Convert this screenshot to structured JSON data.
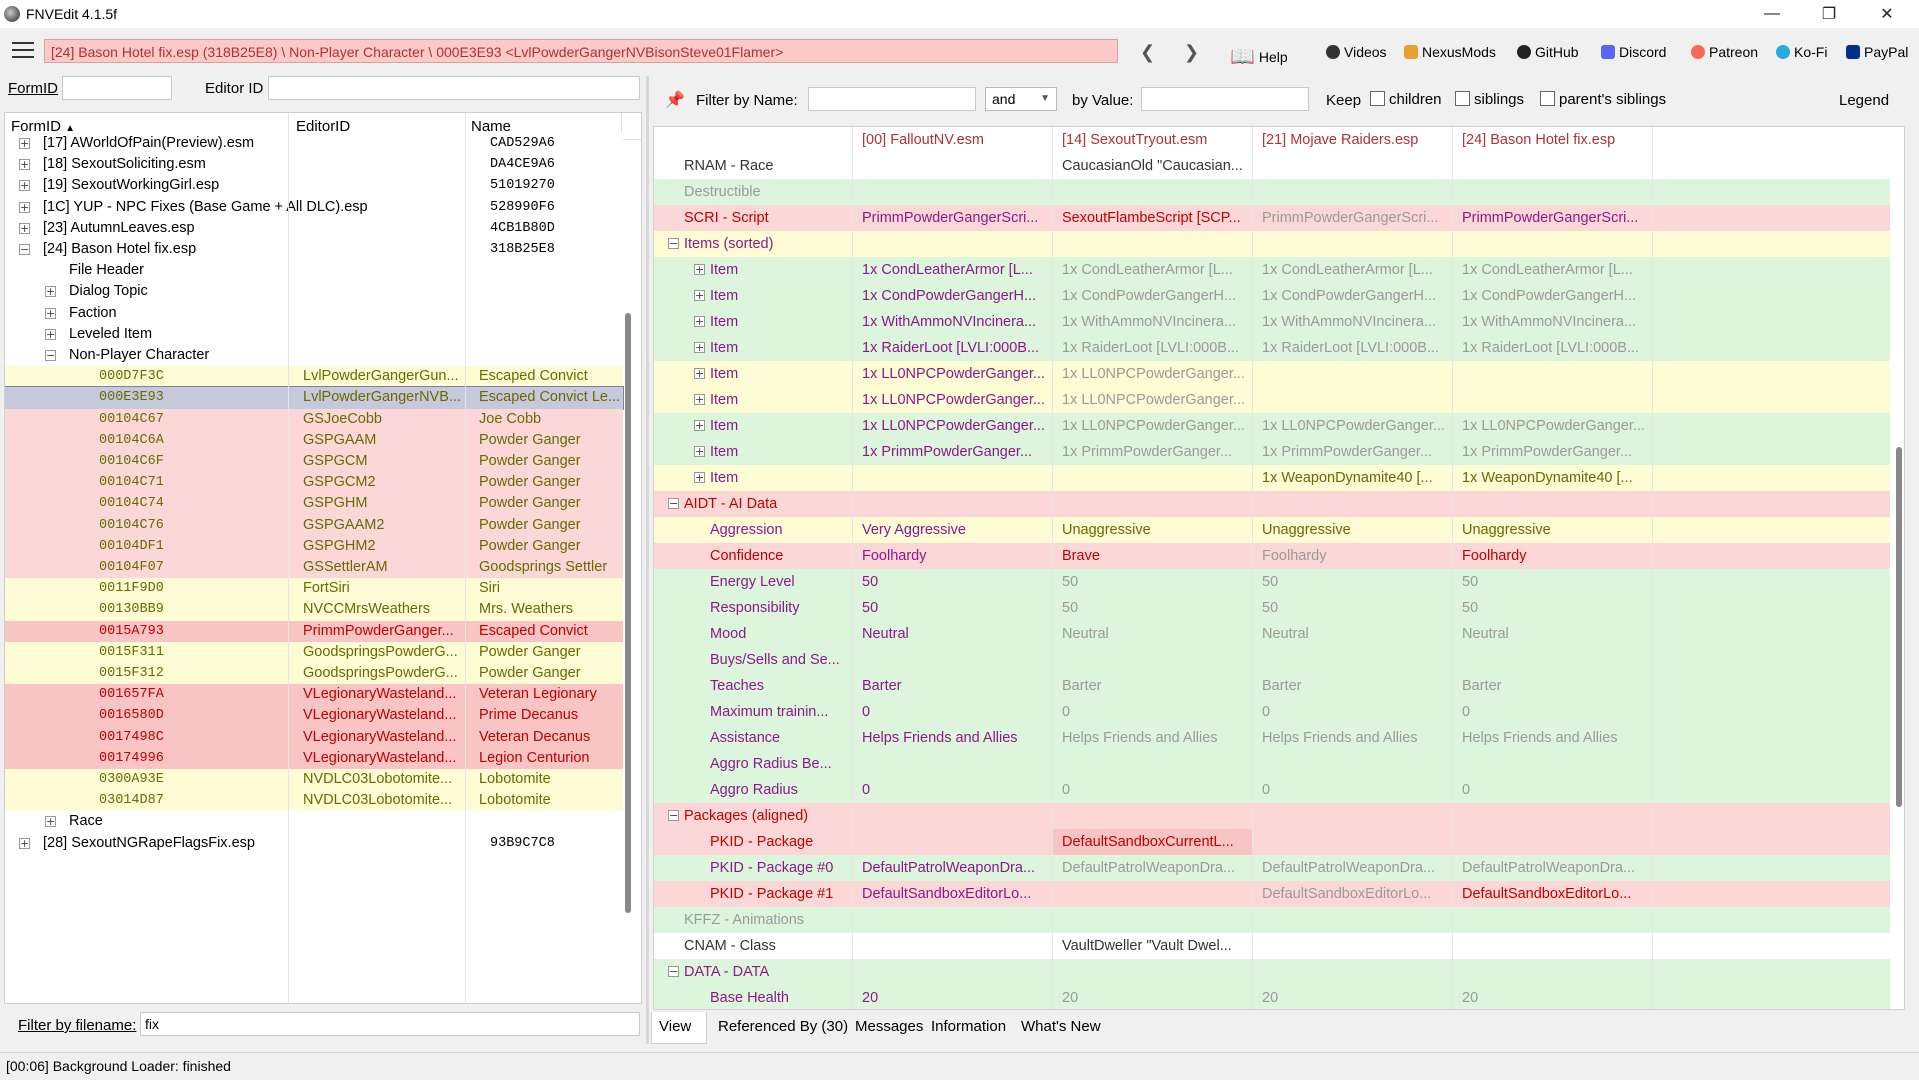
{
  "window": {
    "title": "FNVEdit 4.1.5f"
  },
  "toolbar": {
    "path": "[24] Bason Hotel fix.esp (318B25E8) \\ Non-Player Character \\ 000E3E93 <LvlPowderGangerNVBisonSteve01Flamer>",
    "buttons": [
      "Help",
      "Videos",
      "NexusMods",
      "GitHub",
      "Discord",
      "Patreon",
      "Ko-Fi",
      "PayPal"
    ]
  },
  "left": {
    "formid_label": "FormID",
    "editorid_label": "Editor ID",
    "columns": [
      "FormID",
      "EditorID",
      "Name"
    ],
    "filter_label": "Filter by filename:",
    "filter_value": "fix",
    "tree": [
      {
        "indent": 0,
        "exp": "+",
        "label": "[17] AWorldOfPain(Preview).esm",
        "name": "CAD529A6",
        "bg": "white",
        "cls": ""
      },
      {
        "indent": 0,
        "exp": "+",
        "label": "[18] SexoutSoliciting.esm",
        "name": "DA4CE9A6",
        "bg": "white",
        "cls": ""
      },
      {
        "indent": 0,
        "exp": "+",
        "label": "[19] SexoutWorkingGirl.esp",
        "name": "51019270",
        "bg": "white",
        "cls": ""
      },
      {
        "indent": 0,
        "exp": "+",
        "label": "[1C] YUP - NPC Fixes (Base Game + All DLC).esp",
        "name": "528990F6",
        "bg": "white",
        "cls": ""
      },
      {
        "indent": 0,
        "exp": "+",
        "label": "[23] AutumnLeaves.esp",
        "name": "4CB1B80D",
        "bg": "white",
        "cls": ""
      },
      {
        "indent": 0,
        "exp": "-",
        "label": "[24] Bason Hotel fix.esp",
        "name": "318B25E8",
        "bg": "white",
        "cls": ""
      },
      {
        "indent": 1,
        "exp": "",
        "label": "File Header",
        "name": "",
        "bg": "white",
        "cls": ""
      },
      {
        "indent": 1,
        "exp": "+",
        "label": "Dialog Topic",
        "name": "",
        "bg": "white",
        "cls": ""
      },
      {
        "indent": 1,
        "exp": "+",
        "label": "Faction",
        "name": "",
        "bg": "white",
        "cls": ""
      },
      {
        "indent": 1,
        "exp": "+",
        "label": "Leveled Item",
        "name": "",
        "bg": "white",
        "cls": ""
      },
      {
        "indent": 1,
        "exp": "-",
        "label": "Non-Player Character",
        "name": "",
        "bg": "white",
        "cls": ""
      }
    ],
    "npcs": [
      {
        "formid": "000D7F3C",
        "editorid": "LvlPowderGangerGun...",
        "name": "Escaped Convict",
        "bg": "yellow",
        "cls": "tx-olive"
      },
      {
        "formid": "000E3E93",
        "editorid": "LvlPowderGangerNVB...",
        "name": "Escaped Convict Le...",
        "bg": "selrow",
        "cls": "tx-olive"
      },
      {
        "formid": "00104C67",
        "editorid": "GSJoeCobb",
        "name": "Joe Cobb",
        "bg": "red",
        "cls": "tx-olive"
      },
      {
        "formid": "00104C6A",
        "editorid": "GSPGAAM",
        "name": "Powder Ganger",
        "bg": "red",
        "cls": "tx-olive"
      },
      {
        "formid": "00104C6F",
        "editorid": "GSPGCM",
        "name": "Powder Ganger",
        "bg": "red",
        "cls": "tx-olive"
      },
      {
        "formid": "00104C71",
        "editorid": "GSPGCM2",
        "name": "Powder Ganger",
        "bg": "red",
        "cls": "tx-olive"
      },
      {
        "formid": "00104C74",
        "editorid": "GSPGHM",
        "name": "Powder Ganger",
        "bg": "red",
        "cls": "tx-olive"
      },
      {
        "formid": "00104C76",
        "editorid": "GSPGAAM2",
        "name": "Powder Ganger",
        "bg": "red",
        "cls": "tx-olive"
      },
      {
        "formid": "00104DF1",
        "editorid": "GSPGHM2",
        "name": "Powder Ganger",
        "bg": "red",
        "cls": "tx-olive"
      },
      {
        "formid": "00104F07",
        "editorid": "GSSettlerAM",
        "name": "Goodsprings Settler",
        "bg": "red",
        "cls": "tx-olive"
      },
      {
        "formid": "0011F9D0",
        "editorid": "FortSiri",
        "name": "Siri",
        "bg": "yellow",
        "cls": "tx-olive"
      },
      {
        "formid": "00130BB9",
        "editorid": "NVCCMrsWeathers",
        "name": "Mrs. Weathers",
        "bg": "yellow",
        "cls": "tx-olive"
      },
      {
        "formid": "0015A793",
        "editorid": "PrimmPowderGanger...",
        "name": "Escaped Convict",
        "bg": "redd",
        "cls": "tx-red"
      },
      {
        "formid": "0015F311",
        "editorid": "GoodspringsPowderG...",
        "name": "Powder Ganger",
        "bg": "yellow",
        "cls": "tx-olive"
      },
      {
        "formid": "0015F312",
        "editorid": "GoodspringsPowderG...",
        "name": "Powder Ganger",
        "bg": "yellow",
        "cls": "tx-olive"
      },
      {
        "formid": "001657FA",
        "editorid": "VLegionaryWasteland...",
        "name": "Veteran Legionary",
        "bg": "redd",
        "cls": "tx-red"
      },
      {
        "formid": "0016580D",
        "editorid": "VLegionaryWasteland...",
        "name": "Prime Decanus",
        "bg": "redd",
        "cls": "tx-red"
      },
      {
        "formid": "0017498C",
        "editorid": "VLegionaryWasteland...",
        "name": "Veteran Decanus",
        "bg": "redd",
        "cls": "tx-red"
      },
      {
        "formid": "00174996",
        "editorid": "VLegionaryWasteland...",
        "name": "Legion Centurion",
        "bg": "redd",
        "cls": "tx-red"
      },
      {
        "formid": "0300A93E",
        "editorid": "NVDLC03Lobotomite...",
        "name": "Lobotomite",
        "bg": "yellow",
        "cls": "tx-olive"
      },
      {
        "formid": "03014D87",
        "editorid": "NVDLC03Lobotomite...",
        "name": "Lobotomite",
        "bg": "yellow",
        "cls": "tx-olive"
      }
    ],
    "tail": [
      {
        "indent": 1,
        "exp": "+",
        "label": "Race",
        "name": "",
        "bg": "white",
        "cls": ""
      },
      {
        "indent": 0,
        "exp": "+",
        "label": "[28] SexoutNGRapeFlagsFix.esp",
        "name": "93B9C7C8",
        "bg": "white",
        "cls": ""
      }
    ]
  },
  "filter": {
    "name_label": "Filter by Name:",
    "and_value": "and",
    "value_label": "by Value:",
    "keep_label": "Keep",
    "children_label": "children",
    "siblings_label": "siblings",
    "parents_siblings_label": "parent's siblings",
    "legend_label": "Legend"
  },
  "grid": {
    "columns": [
      "[00] FalloutNV.esm",
      "[14] SexoutTryout.esm",
      "[21] Mojave Raiders.esp",
      "[24] Bason Hotel fix.esp"
    ],
    "rows": [
      {
        "label": "RNAM - Race",
        "lvl": 0,
        "exp": "",
        "bg": "white",
        "cells": [
          "",
          "CaucasianOld \"Caucasian...",
          "",
          ""
        ],
        "cls": [
          "tx-dark",
          "tx-dark",
          "tx-dark",
          "tx-dark"
        ],
        "lcls": "tx-dark"
      },
      {
        "label": "Destructible",
        "lvl": 0,
        "exp": "",
        "bg": "green",
        "cells": [
          "",
          "",
          "",
          ""
        ],
        "cls": [
          "",
          "",
          "",
          ""
        ],
        "lcls": "tx-gray"
      },
      {
        "label": "SCRI - Script",
        "lvl": 0,
        "exp": "",
        "bg": "red",
        "cells": [
          "PrimmPowderGangerScri...",
          "SexoutFlambeScript [SCP...",
          "PrimmPowderGangerScri...",
          "PrimmPowderGangerScri..."
        ],
        "cls": [
          "tx-purple",
          "tx-red",
          "tx-gray",
          "tx-purple"
        ],
        "lcls": "tx-red"
      },
      {
        "label": "Items (sorted)",
        "lvl": 0,
        "exp": "-",
        "bg": "yellow",
        "cells": [
          "",
          "",
          "",
          ""
        ],
        "cls": [
          "",
          "",
          "",
          ""
        ],
        "lcls": "tx-purple"
      },
      {
        "label": "Item",
        "lvl": 1,
        "exp": "+",
        "bg": "green",
        "cells": [
          "1x CondLeatherArmor [L...",
          "1x CondLeatherArmor [L...",
          "1x CondLeatherArmor [L...",
          "1x CondLeatherArmor [L..."
        ],
        "cls": [
          "tx-purple",
          "tx-gray",
          "tx-gray",
          "tx-gray"
        ],
        "lcls": "tx-purple"
      },
      {
        "label": "Item",
        "lvl": 1,
        "exp": "+",
        "bg": "green",
        "cells": [
          "1x CondPowderGangerH...",
          "1x CondPowderGangerH...",
          "1x CondPowderGangerH...",
          "1x CondPowderGangerH..."
        ],
        "cls": [
          "tx-purple",
          "tx-gray",
          "tx-gray",
          "tx-gray"
        ],
        "lcls": "tx-purple"
      },
      {
        "label": "Item",
        "lvl": 1,
        "exp": "+",
        "bg": "green",
        "cells": [
          "1x WithAmmoNVIncinera...",
          "1x WithAmmoNVIncinera...",
          "1x WithAmmoNVIncinera...",
          "1x WithAmmoNVIncinera..."
        ],
        "cls": [
          "tx-purple",
          "tx-gray",
          "tx-gray",
          "tx-gray"
        ],
        "lcls": "tx-purple"
      },
      {
        "label": "Item",
        "lvl": 1,
        "exp": "+",
        "bg": "green",
        "cells": [
          "1x RaiderLoot [LVLI:000B...",
          "1x RaiderLoot [LVLI:000B...",
          "1x RaiderLoot [LVLI:000B...",
          "1x RaiderLoot [LVLI:000B..."
        ],
        "cls": [
          "tx-purple",
          "tx-gray",
          "tx-gray",
          "tx-gray"
        ],
        "lcls": "tx-purple"
      },
      {
        "label": "Item",
        "lvl": 1,
        "exp": "+",
        "bg": "yellow",
        "cells": [
          "1x LL0NPCPowderGanger...",
          "1x LL0NPCPowderGanger...",
          "",
          ""
        ],
        "cls": [
          "tx-purple",
          "tx-gray",
          "",
          ""
        ],
        "lcls": "tx-purple"
      },
      {
        "label": "Item",
        "lvl": 1,
        "exp": "+",
        "bg": "yellow",
        "cells": [
          "1x LL0NPCPowderGanger...",
          "1x LL0NPCPowderGanger...",
          "",
          ""
        ],
        "cls": [
          "tx-purple",
          "tx-gray",
          "",
          ""
        ],
        "lcls": "tx-purple"
      },
      {
        "label": "Item",
        "lvl": 1,
        "exp": "+",
        "bg": "green",
        "cells": [
          "1x LL0NPCPowderGanger...",
          "1x LL0NPCPowderGanger...",
          "1x LL0NPCPowderGanger...",
          "1x LL0NPCPowderGanger..."
        ],
        "cls": [
          "tx-purple",
          "tx-gray",
          "tx-gray",
          "tx-gray"
        ],
        "lcls": "tx-purple"
      },
      {
        "label": "Item",
        "lvl": 1,
        "exp": "+",
        "bg": "green",
        "cells": [
          "1x PrimmPowderGanger...",
          "1x PrimmPowderGanger...",
          "1x PrimmPowderGanger...",
          "1x PrimmPowderGanger..."
        ],
        "cls": [
          "tx-purple",
          "tx-gray",
          "tx-gray",
          "tx-gray"
        ],
        "lcls": "tx-purple"
      },
      {
        "label": "Item",
        "lvl": 1,
        "exp": "+",
        "bg": "yellow",
        "cells": [
          "",
          "",
          "1x WeaponDynamite40 [...",
          "1x WeaponDynamite40 [..."
        ],
        "cls": [
          "",
          "",
          "tx-olive",
          "tx-olive"
        ],
        "lcls": "tx-purple"
      },
      {
        "label": "AIDT - AI Data",
        "lvl": 0,
        "exp": "-",
        "bg": "red",
        "cells": [
          "",
          "",
          "",
          ""
        ],
        "cls": [
          "",
          "",
          "",
          ""
        ],
        "lcls": "tx-red"
      },
      {
        "label": "Aggression",
        "lvl": 1,
        "exp": "",
        "bg": "yellow",
        "cells": [
          "Very Aggressive",
          "Unaggressive",
          "Unaggressive",
          "Unaggressive"
        ],
        "cls": [
          "tx-purple",
          "tx-olive",
          "tx-olive",
          "tx-olive"
        ],
        "lcls": "tx-purple"
      },
      {
        "label": "Confidence",
        "lvl": 1,
        "exp": "",
        "bg": "red",
        "cells": [
          "Foolhardy",
          "Brave",
          "Foolhardy",
          "Foolhardy"
        ],
        "cls": [
          "tx-purple",
          "tx-red",
          "tx-gray",
          "tx-red"
        ],
        "lcls": "tx-red"
      },
      {
        "label": "Energy Level",
        "lvl": 1,
        "exp": "",
        "bg": "green",
        "cells": [
          "50",
          "50",
          "50",
          "50"
        ],
        "cls": [
          "tx-purple",
          "tx-gray",
          "tx-gray",
          "tx-gray"
        ],
        "lcls": "tx-purple"
      },
      {
        "label": "Responsibility",
        "lvl": 1,
        "exp": "",
        "bg": "green",
        "cells": [
          "50",
          "50",
          "50",
          "50"
        ],
        "cls": [
          "tx-purple",
          "tx-gray",
          "tx-gray",
          "tx-gray"
        ],
        "lcls": "tx-purple"
      },
      {
        "label": "Mood",
        "lvl": 1,
        "exp": "",
        "bg": "green",
        "cells": [
          "Neutral",
          "Neutral",
          "Neutral",
          "Neutral"
        ],
        "cls": [
          "tx-purple",
          "tx-gray",
          "tx-gray",
          "tx-gray"
        ],
        "lcls": "tx-purple"
      },
      {
        "label": "Buys/Sells and Se...",
        "lvl": 1,
        "exp": "",
        "bg": "green",
        "cells": [
          "",
          "",
          "",
          ""
        ],
        "cls": [
          "",
          "",
          "",
          ""
        ],
        "lcls": "tx-purple"
      },
      {
        "label": "Teaches",
        "lvl": 1,
        "exp": "",
        "bg": "green",
        "cells": [
          "Barter",
          "Barter",
          "Barter",
          "Barter"
        ],
        "cls": [
          "tx-purple",
          "tx-gray",
          "tx-gray",
          "tx-gray"
        ],
        "lcls": "tx-purple"
      },
      {
        "label": "Maximum trainin...",
        "lvl": 1,
        "exp": "",
        "bg": "green",
        "cells": [
          "0",
          "0",
          "0",
          "0"
        ],
        "cls": [
          "tx-purple",
          "tx-gray",
          "tx-gray",
          "tx-gray"
        ],
        "lcls": "tx-purple"
      },
      {
        "label": "Assistance",
        "lvl": 1,
        "exp": "",
        "bg": "green",
        "cells": [
          "Helps Friends and Allies",
          "Helps Friends and Allies",
          "Helps Friends and Allies",
          "Helps Friends and Allies"
        ],
        "cls": [
          "tx-purple",
          "tx-gray",
          "tx-gray",
          "tx-gray"
        ],
        "lcls": "tx-purple"
      },
      {
        "label": "Aggro Radius Be...",
        "lvl": 1,
        "exp": "",
        "bg": "green",
        "cells": [
          "",
          "",
          "",
          ""
        ],
        "cls": [
          "",
          "",
          "",
          ""
        ],
        "lcls": "tx-purple"
      },
      {
        "label": "Aggro Radius",
        "lvl": 1,
        "exp": "",
        "bg": "green",
        "cells": [
          "0",
          "0",
          "0",
          "0"
        ],
        "cls": [
          "tx-purple",
          "tx-gray",
          "tx-gray",
          "tx-gray"
        ],
        "lcls": "tx-purple"
      },
      {
        "label": "Packages (aligned)",
        "lvl": 0,
        "exp": "-",
        "bg": "red",
        "cells": [
          "",
          "",
          "",
          ""
        ],
        "cls": [
          "",
          "",
          "",
          ""
        ],
        "lcls": "tx-red"
      },
      {
        "label": "PKID - Package",
        "lvl": 1,
        "exp": "",
        "bg": "red",
        "cells": [
          "",
          "DefaultSandboxCurrentL...",
          "",
          ""
        ],
        "cls": [
          "",
          "tx-red",
          "",
          ""
        ],
        "lcls": "tx-red"
      },
      {
        "label": "PKID - Package #0",
        "lvl": 1,
        "exp": "",
        "bg": "green",
        "cells": [
          "DefaultPatrolWeaponDra...",
          "DefaultPatrolWeaponDra...",
          "DefaultPatrolWeaponDra...",
          "DefaultPatrolWeaponDra..."
        ],
        "cls": [
          "tx-purple",
          "tx-gray",
          "tx-gray",
          "tx-gray"
        ],
        "lcls": "tx-purple"
      },
      {
        "label": "PKID - Package #1",
        "lvl": 1,
        "exp": "",
        "bg": "red",
        "cells": [
          "DefaultSandboxEditorLo...",
          "",
          "DefaultSandboxEditorLo...",
          "DefaultSandboxEditorLo..."
        ],
        "cls": [
          "tx-purple",
          "",
          "tx-gray",
          "tx-red"
        ],
        "lcls": "tx-red"
      },
      {
        "label": "KFFZ - Animations",
        "lvl": 0,
        "exp": "",
        "bg": "green",
        "cells": [
          "",
          "",
          "",
          ""
        ],
        "cls": [
          "",
          "",
          "",
          ""
        ],
        "lcls": "tx-gray"
      },
      {
        "label": "CNAM - Class",
        "lvl": 0,
        "exp": "",
        "bg": "white",
        "cells": [
          "",
          "VaultDweller \"Vault Dwel...",
          "",
          ""
        ],
        "cls": [
          "",
          "tx-dark",
          "",
          ""
        ],
        "lcls": "tx-dark"
      },
      {
        "label": "DATA - DATA",
        "lvl": 0,
        "exp": "-",
        "bg": "green",
        "cells": [
          "",
          "",
          "",
          ""
        ],
        "cls": [
          "",
          "",
          "",
          ""
        ],
        "lcls": "tx-purple"
      },
      {
        "label": "Base Health",
        "lvl": 1,
        "exp": "",
        "bg": "green",
        "cells": [
          "20",
          "20",
          "20",
          "20"
        ],
        "cls": [
          "tx-purple",
          "tx-gray",
          "tx-gray",
          "tx-gray"
        ],
        "lcls": "tx-purple"
      }
    ]
  },
  "tabs": [
    "View",
    "Referenced By (30)",
    "Messages",
    "Information",
    "What's New"
  ],
  "status": "[00:06] Background Loader: finished"
}
